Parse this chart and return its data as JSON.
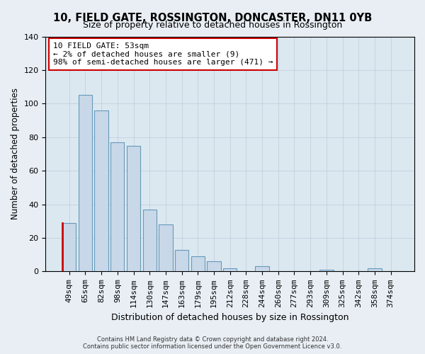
{
  "title": "10, FIELD GATE, ROSSINGTON, DONCASTER, DN11 0YB",
  "subtitle": "Size of property relative to detached houses in Rossington",
  "xlabel": "Distribution of detached houses by size in Rossington",
  "ylabel": "Number of detached properties",
  "categories": [
    "49sqm",
    "65sqm",
    "82sqm",
    "98sqm",
    "114sqm",
    "130sqm",
    "147sqm",
    "163sqm",
    "179sqm",
    "195sqm",
    "212sqm",
    "228sqm",
    "244sqm",
    "260sqm",
    "277sqm",
    "293sqm",
    "309sqm",
    "325sqm",
    "342sqm",
    "358sqm",
    "374sqm"
  ],
  "values": [
    29,
    105,
    96,
    77,
    75,
    37,
    28,
    13,
    9,
    6,
    2,
    0,
    3,
    0,
    0,
    0,
    1,
    0,
    0,
    2,
    0
  ],
  "bar_color": "#c8d8e8",
  "bar_edge_color": "#6699bb",
  "highlight_bar_index": 0,
  "highlight_color": "#cc0000",
  "ylim": [
    0,
    140
  ],
  "yticks": [
    0,
    20,
    40,
    60,
    80,
    100,
    120,
    140
  ],
  "annotation_title": "10 FIELD GATE: 53sqm",
  "annotation_line1": "← 2% of detached houses are smaller (9)",
  "annotation_line2": "98% of semi-detached houses are larger (471) →",
  "annotation_box_edge_color": "#cc0000",
  "footer_line1": "Contains HM Land Registry data © Crown copyright and database right 2024.",
  "footer_line2": "Contains public sector information licensed under the Open Government Licence v3.0.",
  "background_color": "#e8eef4",
  "plot_background_color": "#dce8f0"
}
